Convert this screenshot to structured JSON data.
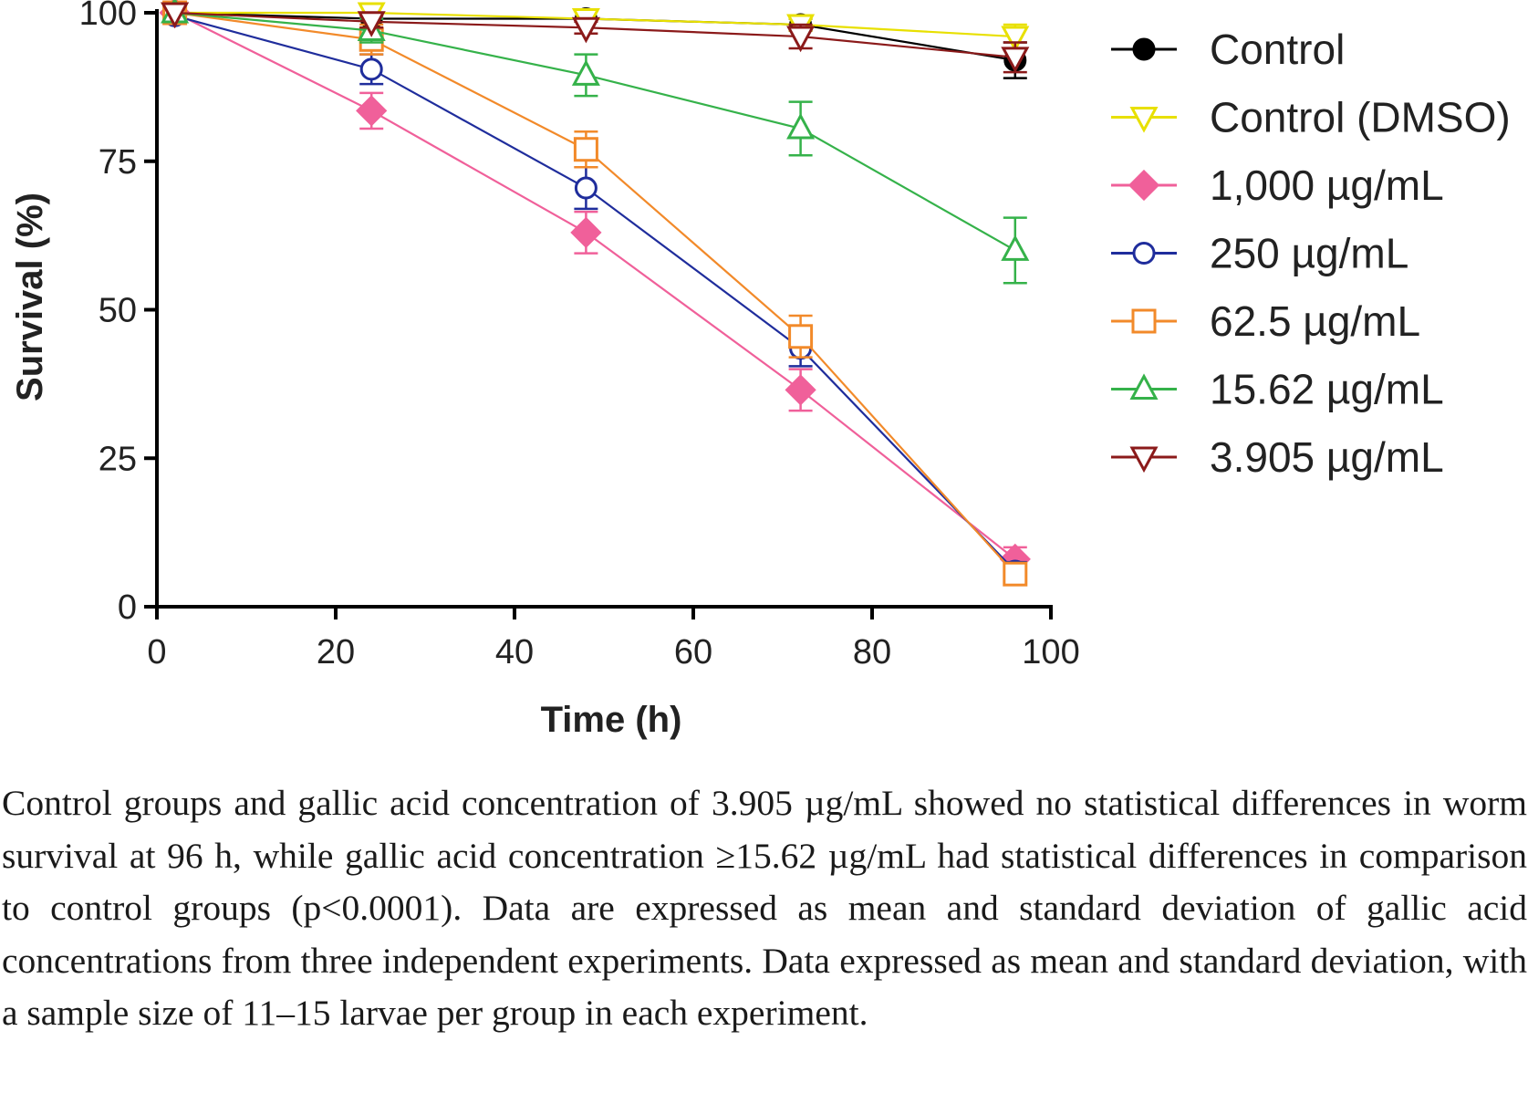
{
  "chart_data": {
    "type": "line",
    "xlabel": "Time (h)",
    "ylabel": "Survival (%)",
    "xlim": [
      0,
      100
    ],
    "ylim": [
      0,
      100
    ],
    "x_ticks": [
      "0",
      "20",
      "40",
      "60",
      "80",
      "100"
    ],
    "y_ticks": [
      "0",
      "25",
      "50",
      "75",
      "100"
    ],
    "grid": false,
    "legend_position": "right",
    "x": [
      2,
      24,
      48,
      72,
      96
    ],
    "series": [
      {
        "name": "Control",
        "color": "#000000",
        "marker": "circle-filled",
        "values": [
          100,
          99,
          99,
          98,
          92
        ],
        "errors": [
          0,
          0,
          0,
          1,
          3
        ]
      },
      {
        "name": "Control (DMSO)",
        "color": "#e8e000",
        "marker": "triangle-down-open",
        "values": [
          100,
          100,
          99,
          98,
          96
        ],
        "errors": [
          0,
          0,
          0,
          1,
          2
        ]
      },
      {
        "name": "1,000 µg/mL",
        "color": "#f0609a",
        "marker": "diamond-filled",
        "values": [
          100,
          83.5,
          63,
          36.5,
          8
        ],
        "errors": [
          0,
          3,
          3.5,
          3.5,
          2
        ]
      },
      {
        "name": "250 µg/mL",
        "color": "#1f2d9c",
        "marker": "circle-open",
        "values": [
          99.5,
          90.5,
          70.5,
          43.5,
          6
        ],
        "errors": [
          0,
          2.5,
          3.5,
          3,
          1.5
        ]
      },
      {
        "name": "62.5 µg/mL",
        "color": "#f28a2a",
        "marker": "square-open",
        "values": [
          100,
          95.5,
          77,
          45.5,
          5.5
        ],
        "errors": [
          0,
          2.5,
          3,
          3.5,
          1.5
        ]
      },
      {
        "name": "15.62 µg/mL",
        "color": "#35b24a",
        "marker": "triangle-up-open",
        "values": [
          100,
          97,
          89.5,
          80.5,
          60
        ],
        "errors": [
          0,
          2,
          3.5,
          4.5,
          5.5
        ]
      },
      {
        "name": "3.905 µg/mL",
        "color": "#8b1a1a",
        "marker": "triangle-down-open",
        "values": [
          100,
          98.5,
          97.5,
          96,
          92.5
        ],
        "errors": [
          0,
          1,
          1,
          2,
          2.5
        ]
      }
    ]
  },
  "caption": "Control groups and gallic acid concentration of 3.905 µg/mL showed no statistical differences in worm survival at 96 h, while gallic acid concentration ≥15.62 µg/mL had statistical differences in comparison to control groups (p<0.0001). Data are expressed as mean and standard deviation of gallic acid concentrations from three independent experiments. Data expressed as mean and standard deviation, with a sample size of 11–15 larvae per group in each experiment."
}
